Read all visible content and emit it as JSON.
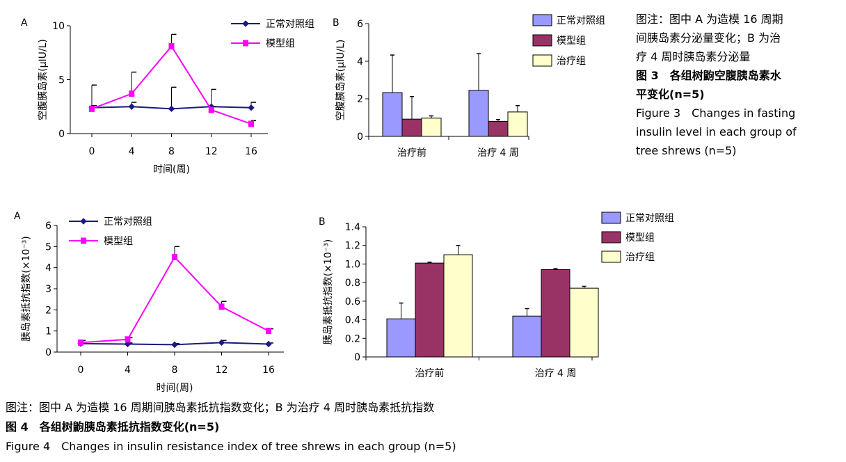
{
  "figure3": {
    "caption_lines": [
      "图注：图中 A 为造模 16 周期",
      "间胰岛素分泌量变化；B 为治",
      "疗 4 周时胰岛素分泌量"
    ],
    "title_cn_lines": [
      "图 3　各组树鼩空腹胰岛素水",
      "平变化(n=5)"
    ],
    "title_en_lines": [
      "Figure 3　Changes in fasting",
      "insulin level in each group of",
      "tree shrews (n=5)"
    ]
  },
  "figure4": {
    "caption": "图注：图中 A 为造模 16 周期间胰岛素抵抗指数变化；B 为治疗 4 周时胰岛素抵抗指数",
    "title_cn": "图 4　各组树鼩胰岛素抵抗指数变化(n=5)",
    "title_en": "Figure 4　Changes in insulin resistance index of tree shrews in each group (n=5)"
  },
  "colors": {
    "normal_line": "#1a1a80",
    "model_line": "#ff00ff",
    "bar_normal": "#9999ff",
    "bar_model": "#993366",
    "bar_treat": "#ffffcc"
  },
  "chart_data": [
    {
      "id": "fig3A",
      "panel_label": "A",
      "type": "line",
      "xlabel": "时间(周)",
      "ylabel": "空腹胰岛素(μIU/L)",
      "x": [
        0,
        4,
        8,
        12,
        16
      ],
      "xticks": [
        "0",
        "4",
        "8",
        "12",
        "16"
      ],
      "yticks": [
        "0",
        "5",
        "10"
      ],
      "ylim": [
        0,
        10
      ],
      "series": [
        {
          "name": "正常对照组",
          "values": [
            2.4,
            2.5,
            2.3,
            2.5,
            2.4
          ],
          "errors": [
            2.1,
            0.4,
            2.0,
            1.6,
            0.5
          ]
        },
        {
          "name": "模型组",
          "values": [
            2.3,
            3.7,
            8.1,
            2.2,
            0.9
          ],
          "errors": [
            0.3,
            2.0,
            1.1,
            0.3,
            0.3
          ]
        }
      ],
      "legend": "top-right"
    },
    {
      "id": "fig3B",
      "panel_label": "B",
      "type": "bar",
      "categories": [
        "治疗前",
        "治疗 4 周"
      ],
      "ylabel": "空腹胰岛素(μIU/L)",
      "yticks": [
        "0",
        "2",
        "4",
        "6"
      ],
      "ylim": [
        0,
        6
      ],
      "series": [
        {
          "name": "正常对照组",
          "values": [
            2.33,
            2.45
          ],
          "errors": [
            2.0,
            1.95
          ]
        },
        {
          "name": "模型组",
          "values": [
            0.92,
            0.8
          ],
          "errors": [
            1.2,
            0.1
          ]
        },
        {
          "name": "治疗组",
          "values": [
            0.97,
            1.3
          ],
          "errors": [
            0.12,
            0.34
          ]
        }
      ],
      "legend": "top-right"
    },
    {
      "id": "fig4A",
      "panel_label": "A",
      "type": "line",
      "xlabel": "时间(周)",
      "ylabel": "胰岛素抵抗指数(×10⁻³)",
      "x": [
        0,
        4,
        8,
        12,
        16
      ],
      "xticks": [
        "0",
        "4",
        "8",
        "12",
        "16"
      ],
      "yticks": [
        "0",
        "1",
        "2",
        "3",
        "4",
        "5",
        "6"
      ],
      "ylim": [
        0,
        6
      ],
      "series": [
        {
          "name": "正常对照组",
          "values": [
            0.4,
            0.38,
            0.35,
            0.45,
            0.38
          ],
          "errors": [
            0.05,
            0.05,
            0.05,
            0.1,
            0.05
          ]
        },
        {
          "name": "模型组",
          "values": [
            0.45,
            0.6,
            4.5,
            2.15,
            1.0
          ],
          "errors": [
            0.1,
            0.08,
            0.5,
            0.25,
            0.1
          ]
        }
      ],
      "legend": "top-left"
    },
    {
      "id": "fig4B",
      "panel_label": "B",
      "type": "bar",
      "categories": [
        "治疗前",
        "治疗 4 周"
      ],
      "ylabel": "胰岛素抵抗指数(×10⁻³)",
      "yticks": [
        "0",
        "0.2",
        "0.4",
        "0.6",
        "0.8",
        "1.0",
        "1.2",
        "1.4"
      ],
      "ylim": [
        0,
        1.4
      ],
      "series": [
        {
          "name": "正常对照组",
          "values": [
            0.41,
            0.44
          ],
          "errors": [
            0.17,
            0.08
          ]
        },
        {
          "name": "模型组",
          "values": [
            1.01,
            0.94
          ],
          "errors": [
            0.01,
            0.01
          ]
        },
        {
          "name": "治疗组",
          "values": [
            1.1,
            0.74
          ],
          "errors": [
            0.1,
            0.02
          ]
        }
      ],
      "legend": "top-right"
    }
  ]
}
